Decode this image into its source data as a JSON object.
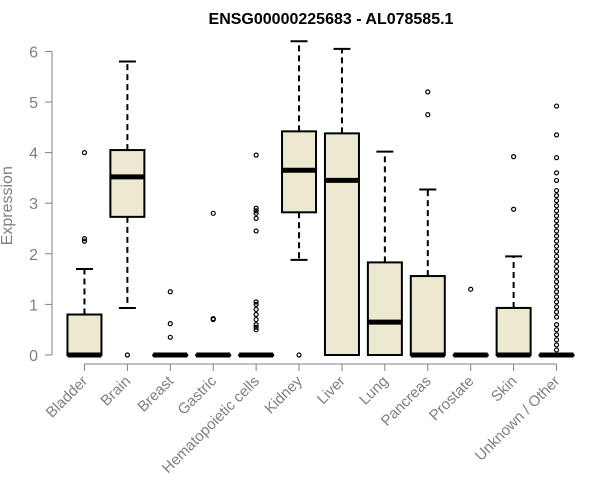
{
  "chart_data": {
    "type": "boxplot",
    "title": "ENSG00000225683 - AL078585.1",
    "xlabel": "",
    "ylabel": "Expression",
    "ylim": [
      0,
      6.2
    ],
    "yticks": [
      0,
      1,
      2,
      3,
      4,
      5,
      6
    ],
    "box_fill": "#ede8d0",
    "box_stroke": "#000000",
    "axis_color": "#808080",
    "categories": [
      "Bladder",
      "Brain",
      "Breast",
      "Gastric",
      "Hematopoietic cells",
      "Kidney",
      "Liver",
      "Lung",
      "Pancreas",
      "Prostate",
      "Skin",
      "Unknown / Other"
    ],
    "boxes": [
      {
        "name": "Bladder",
        "whisker_low": 0,
        "q1": 0,
        "median": 0,
        "q3": 0.8,
        "whisker_high": 1.7,
        "outliers": [
          2.25,
          2.3,
          4.0
        ]
      },
      {
        "name": "Brain",
        "whisker_low": 0.93,
        "q1": 2.73,
        "median": 3.52,
        "q3": 4.05,
        "whisker_high": 5.8,
        "outliers": [
          0
        ]
      },
      {
        "name": "Breast",
        "whisker_low": 0,
        "q1": 0,
        "median": 0,
        "q3": 0,
        "whisker_high": 0,
        "outliers": [
          0.35,
          0.62,
          1.25
        ]
      },
      {
        "name": "Gastric",
        "whisker_low": 0,
        "q1": 0,
        "median": 0,
        "q3": 0,
        "whisker_high": 0,
        "outliers": [
          0.7,
          0.72,
          2.8
        ]
      },
      {
        "name": "Hematopoietic cells",
        "whisker_low": 0,
        "q1": 0,
        "median": 0,
        "q3": 0,
        "whisker_high": 0,
        "outliers": [
          0.5,
          0.55,
          0.6,
          0.7,
          0.8,
          0.9,
          1.0,
          1.05,
          2.45,
          2.7,
          2.8,
          2.85,
          2.9,
          3.95
        ]
      },
      {
        "name": "Kidney",
        "whisker_low": 1.88,
        "q1": 2.82,
        "median": 3.65,
        "q3": 4.42,
        "whisker_high": 6.2,
        "outliers": [
          0
        ]
      },
      {
        "name": "Liver",
        "whisker_low": 0,
        "q1": 0,
        "median": 3.45,
        "q3": 4.38,
        "whisker_high": 6.05,
        "outliers": []
      },
      {
        "name": "Lung",
        "whisker_low": 0,
        "q1": 0,
        "median": 0.65,
        "q3": 1.83,
        "whisker_high": 4.02,
        "outliers": []
      },
      {
        "name": "Pancreas",
        "whisker_low": 0,
        "q1": 0,
        "median": 0,
        "q3": 1.56,
        "whisker_high": 3.27,
        "outliers": [
          4.75,
          5.2
        ]
      },
      {
        "name": "Prostate",
        "whisker_low": 0,
        "q1": 0,
        "median": 0,
        "q3": 0,
        "whisker_high": 0,
        "outliers": [
          1.3
        ]
      },
      {
        "name": "Skin",
        "whisker_low": 0,
        "q1": 0,
        "median": 0,
        "q3": 0.93,
        "whisker_high": 1.95,
        "outliers": [
          2.88,
          3.92
        ]
      },
      {
        "name": "Unknown / Other",
        "whisker_low": 0,
        "q1": 0,
        "median": 0,
        "q3": 0,
        "whisker_high": 0,
        "outliers": [
          0.1,
          0.2,
          0.3,
          0.4,
          0.5,
          0.6,
          0.75,
          0.85,
          0.95,
          1.05,
          1.15,
          1.25,
          1.35,
          1.45,
          1.55,
          1.65,
          1.75,
          1.85,
          1.95,
          2.05,
          2.15,
          2.25,
          2.35,
          2.45,
          2.55,
          2.65,
          2.75,
          2.85,
          2.95,
          3.05,
          3.15,
          3.25,
          3.45,
          3.6,
          3.9,
          4.35,
          4.92
        ]
      }
    ]
  }
}
